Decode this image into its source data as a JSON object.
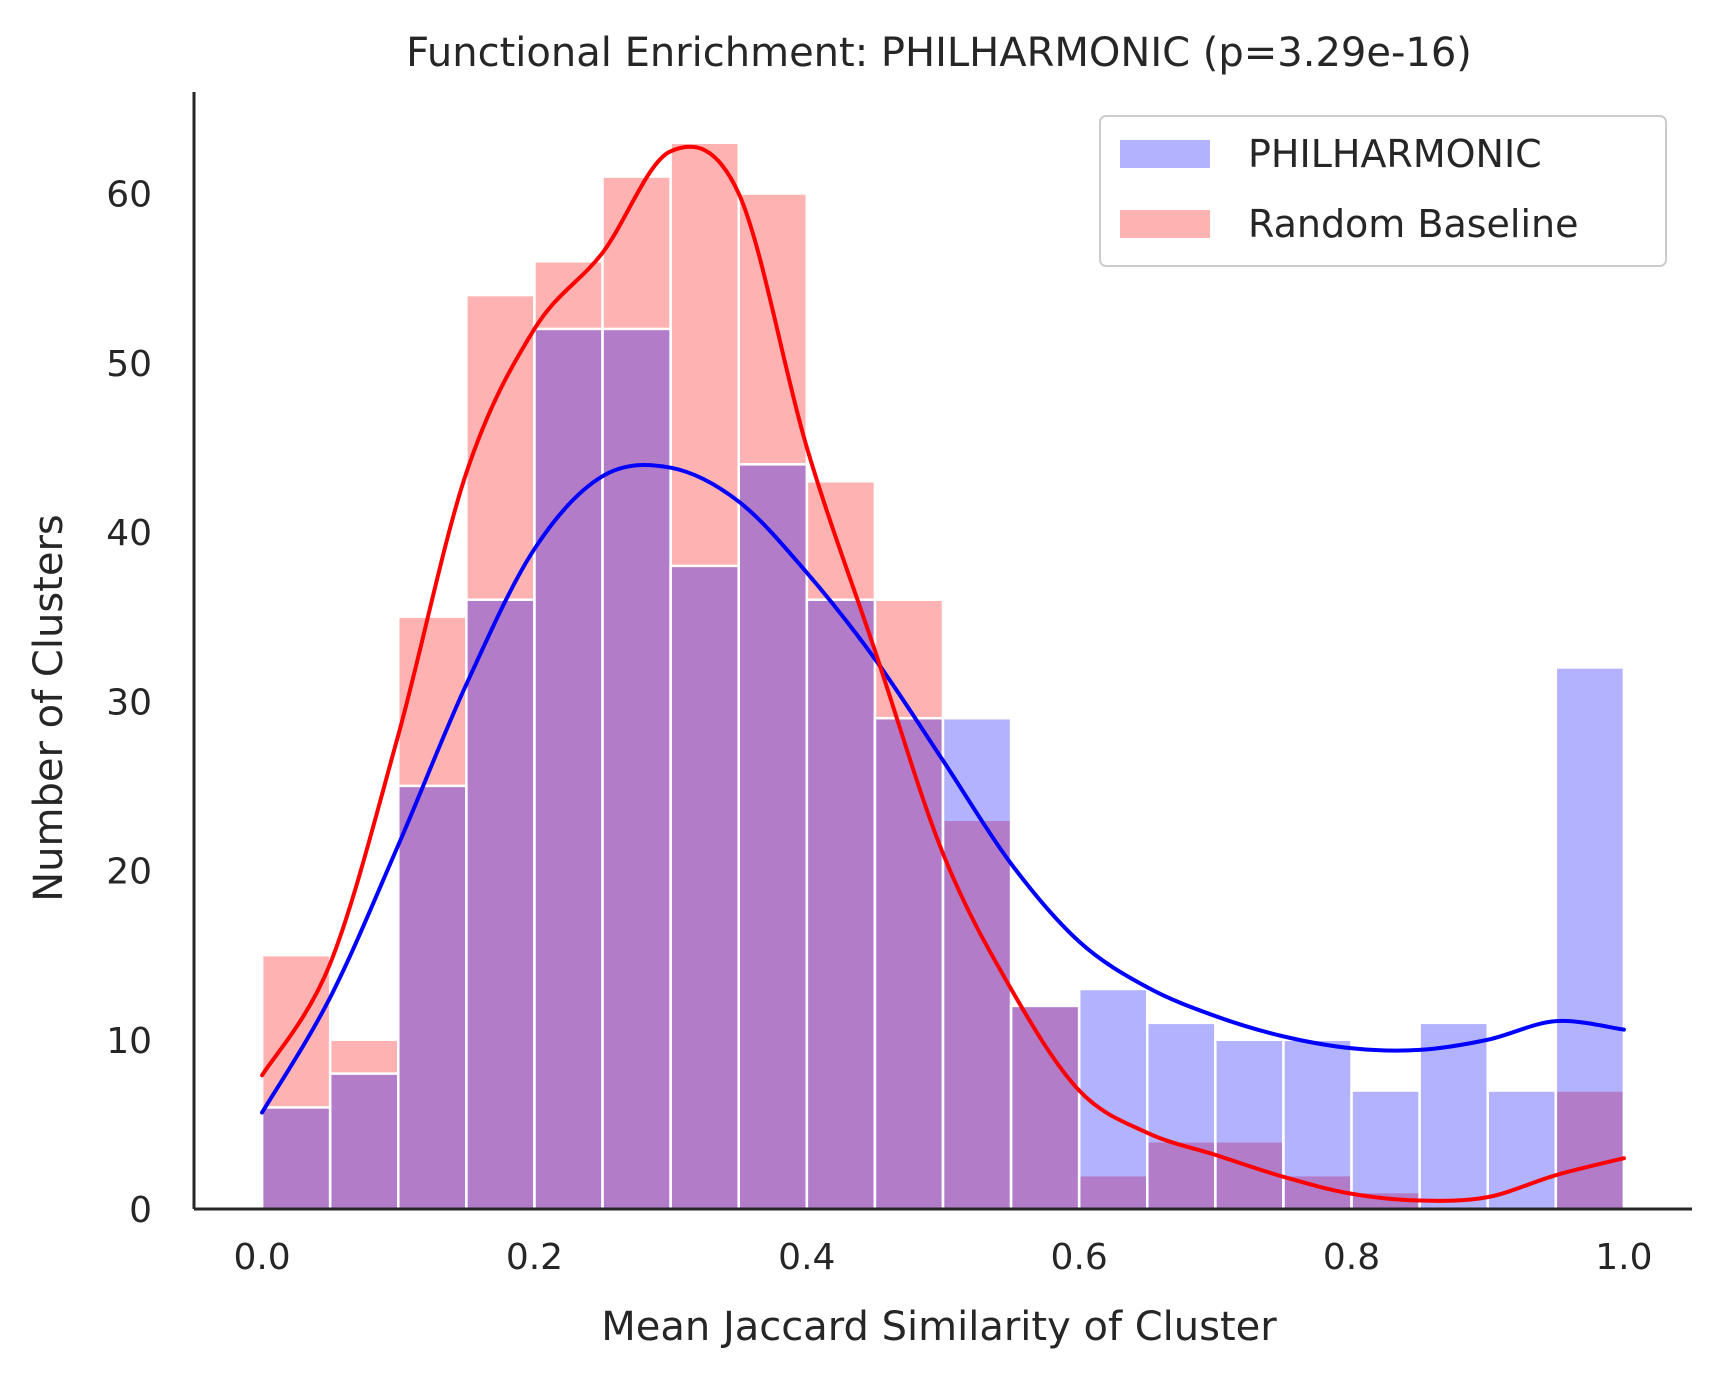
{
  "chart_data": {
    "type": "bar",
    "title": "Functional Enrichment: PHILHARMONIC (p=3.29e-16)",
    "xlabel": "Mean Jaccard Similarity of Cluster",
    "ylabel": "Number of Clusters",
    "xlim": [
      -0.05,
      1.05
    ],
    "ylim": [
      0,
      66
    ],
    "xticks": [
      0.0,
      0.2,
      0.4,
      0.6,
      0.8,
      1.0
    ],
    "xtick_labels": [
      "0.0",
      "0.2",
      "0.4",
      "0.6",
      "0.8",
      "1.0"
    ],
    "yticks": [
      0,
      10,
      20,
      30,
      40,
      50,
      60
    ],
    "ytick_labels": [
      "0",
      "10",
      "20",
      "30",
      "40",
      "50",
      "60"
    ],
    "grid": false,
    "legend_position": "top-right",
    "bin_edges": [
      0.0,
      0.05,
      0.1,
      0.15,
      0.2,
      0.25,
      0.3,
      0.35,
      0.4,
      0.45,
      0.5,
      0.55,
      0.6,
      0.65,
      0.7,
      0.75,
      0.8,
      0.85,
      0.9,
      0.95,
      1.0
    ],
    "series": [
      {
        "name": "PHILHARMONIC",
        "color": "#0000ff",
        "values": [
          6,
          8,
          25,
          36,
          52,
          52,
          38,
          44,
          36,
          29,
          29,
          12,
          13,
          11,
          10,
          10,
          7,
          11,
          7,
          32
        ],
        "kde_x": [
          0.0,
          0.05,
          0.1,
          0.15,
          0.2,
          0.25,
          0.3,
          0.35,
          0.4,
          0.45,
          0.5,
          0.55,
          0.6,
          0.65,
          0.7,
          0.75,
          0.8,
          0.85,
          0.9,
          0.95,
          1.0
        ],
        "kde_y": [
          5.7,
          12.5,
          21.5,
          31.0,
          39.0,
          43.3,
          43.8,
          41.8,
          37.6,
          32.5,
          26.5,
          20.4,
          15.8,
          13.1,
          11.4,
          10.2,
          9.5,
          9.4,
          10.0,
          11.1,
          10.6
        ]
      },
      {
        "name": "Random Baseline",
        "color": "#ff0000",
        "values": [
          15,
          10,
          35,
          54,
          56,
          61,
          63,
          60,
          43,
          36,
          23,
          12,
          2,
          4,
          4,
          2,
          1,
          0,
          0,
          7
        ],
        "kde_x": [
          0.0,
          0.05,
          0.1,
          0.15,
          0.2,
          0.25,
          0.3,
          0.35,
          0.4,
          0.45,
          0.5,
          0.55,
          0.6,
          0.65,
          0.7,
          0.75,
          0.8,
          0.85,
          0.9,
          0.95,
          1.0
        ],
        "kde_y": [
          7.9,
          14.5,
          28.0,
          43.5,
          52.0,
          56.5,
          62.5,
          60.0,
          45.0,
          33.0,
          21.0,
          13.0,
          7.0,
          4.5,
          3.2,
          1.9,
          0.9,
          0.5,
          0.7,
          2.0,
          3.0
        ]
      }
    ]
  }
}
